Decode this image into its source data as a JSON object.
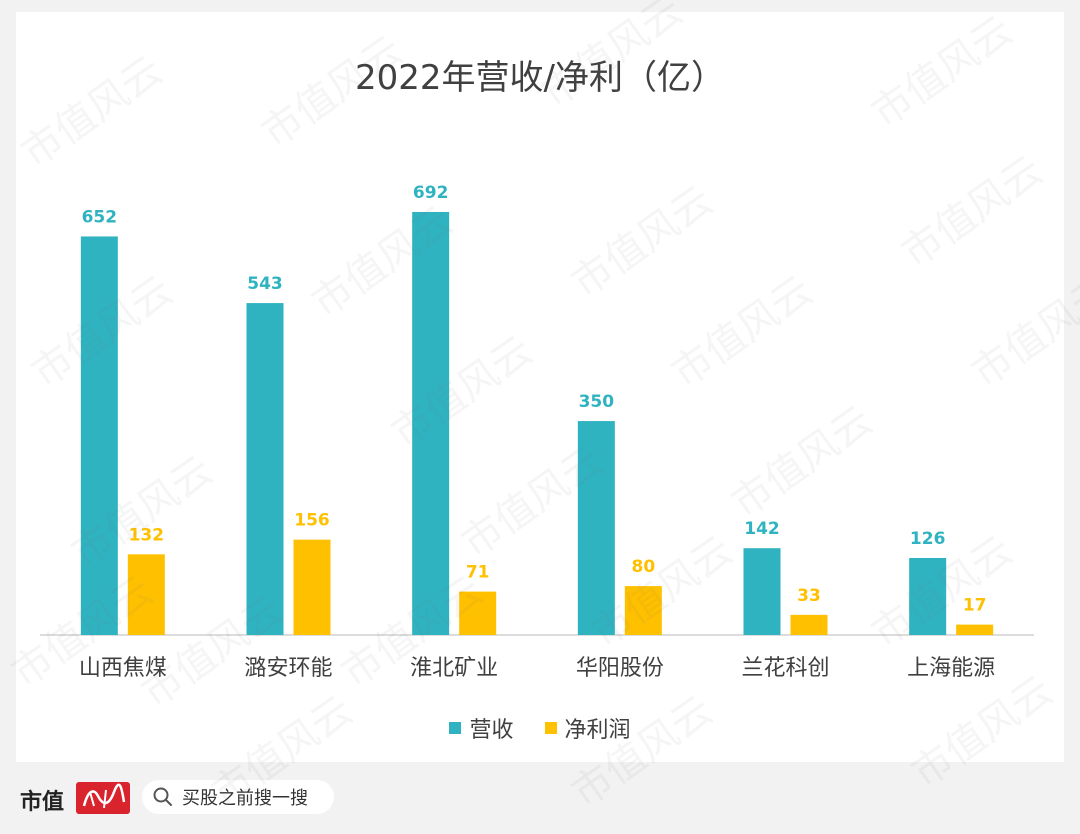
{
  "chart_data": {
    "type": "bar",
    "title": "2022年营收/净利（亿）",
    "categories": [
      "山西焦煤",
      "潞安环能",
      "淮北矿业",
      "华阳股份",
      "兰花科创",
      "上海能源"
    ],
    "series": [
      {
        "name": "营收",
        "color": "#2fb3c0",
        "values": [
          652,
          543,
          692,
          350,
          142,
          126
        ]
      },
      {
        "name": "净利润",
        "color": "#ffc000",
        "values": [
          132,
          156,
          71,
          80,
          33,
          17
        ]
      }
    ],
    "ylim": [
      0,
      700
    ],
    "grid": false,
    "legend_position": "bottom"
  },
  "footer": {
    "brand": "市值",
    "search_placeholder": "买股之前搜一搜",
    "search_icon": "search-icon"
  },
  "watermark": "市值风云"
}
